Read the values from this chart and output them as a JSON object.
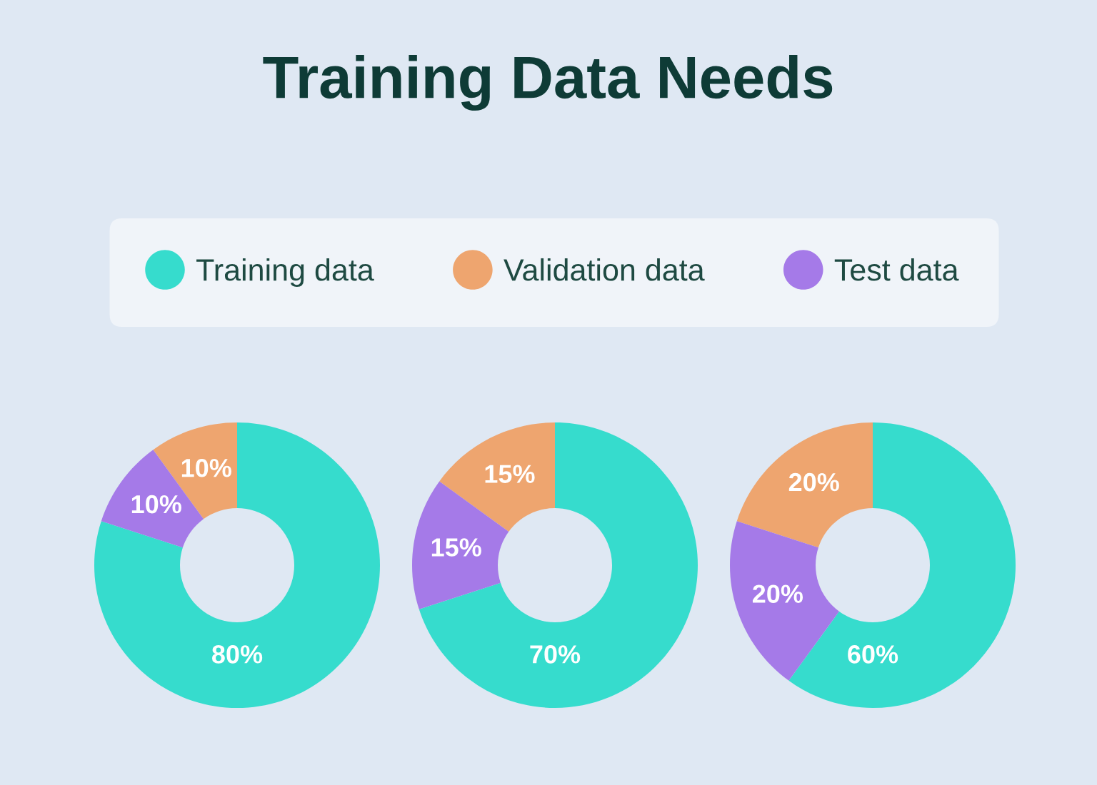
{
  "chart_data": [
    {
      "type": "donut",
      "title": "Training Data Needs",
      "legend": "top",
      "categories": [
        "Training data",
        "Validation data",
        "Test data"
      ],
      "values": [
        80,
        10,
        10
      ],
      "colors": [
        "#36dccd",
        "#eea56f",
        "#a57ae8"
      ],
      "value_labels": [
        "80%",
        "10%",
        "10%"
      ]
    },
    {
      "type": "donut",
      "categories": [
        null,
        null,
        null
      ],
      "values": [
        70,
        15,
        15
      ],
      "colors": [
        "#36dccd",
        "#eea56f",
        "#a57ae8"
      ],
      "value_labels": [
        "70%",
        "15%",
        "15%"
      ]
    },
    {
      "type": "donut",
      "categories": [
        null,
        null,
        null
      ],
      "values": [
        60,
        20,
        20
      ],
      "colors": [
        "#36dccd",
        "#eea56f",
        "#a57ae8"
      ],
      "value_labels": [
        "60%",
        "20%",
        "20%"
      ]
    }
  ]
}
